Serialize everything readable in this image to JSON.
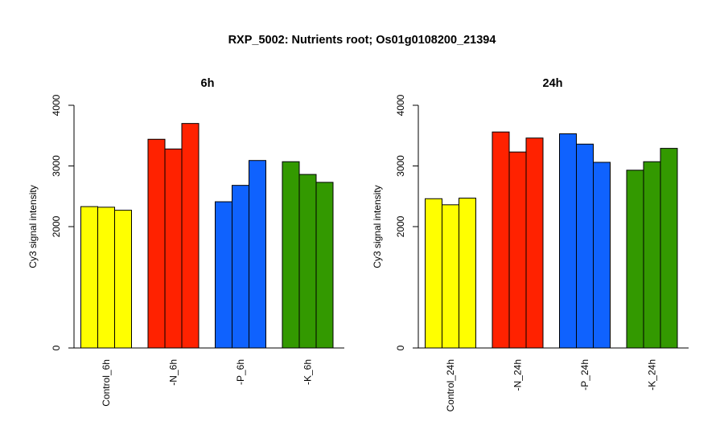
{
  "title": "RXP_5002: Nutrients root; Os01g0108200_21394",
  "chart_data": [
    {
      "type": "bar",
      "title": "6h",
      "ylabel": "Cy3 signal intensity",
      "xlabel": "",
      "ylim": [
        0,
        4000
      ],
      "yticks": [
        0,
        2000,
        3000,
        4000
      ],
      "categories": [
        "Control_6h",
        "-N_6h",
        "-P_6h",
        "-K_6h"
      ],
      "colors": [
        "#ffff00",
        "#ff2200",
        "#0f62fe",
        "#339900"
      ],
      "values": [
        [
          2330,
          2320,
          2270
        ],
        [
          3440,
          3280,
          3700
        ],
        [
          2410,
          2680,
          3090
        ],
        [
          3070,
          2860,
          2730
        ]
      ]
    },
    {
      "type": "bar",
      "title": "24h",
      "ylabel": "Cy3 signal intensity",
      "xlabel": "",
      "ylim": [
        0,
        4000
      ],
      "yticks": [
        0,
        2000,
        3000,
        4000
      ],
      "categories": [
        "Control_24h",
        "-N_24h",
        "-P_24h",
        "-K_24h"
      ],
      "colors": [
        "#ffff00",
        "#ff2200",
        "#0f62fe",
        "#339900"
      ],
      "values": [
        [
          2460,
          2360,
          2470
        ],
        [
          3560,
          3230,
          3460
        ],
        [
          3530,
          3360,
          3060
        ],
        [
          2930,
          3070,
          3290
        ]
      ]
    }
  ]
}
